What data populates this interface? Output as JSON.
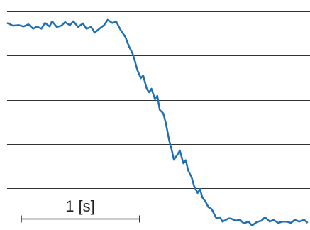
{
  "chart_data": {
    "type": "line",
    "x": [
      0,
      0.05,
      0.1,
      0.14,
      0.18,
      0.22,
      0.25,
      0.29,
      0.32,
      0.36,
      0.38,
      0.42,
      0.46,
      0.49,
      0.53,
      0.56,
      0.6,
      0.64,
      0.67,
      0.71,
      0.74,
      0.78,
      0.82,
      0.85,
      0.89,
      0.92,
      0.96,
      1.0,
      1.03,
      1.06,
      1.08,
      1.1,
      1.13,
      1.15,
      1.18,
      1.2,
      1.22,
      1.25,
      1.27,
      1.29,
      1.32,
      1.34,
      1.37,
      1.39,
      1.41,
      1.44,
      1.46,
      1.49,
      1.51,
      1.53,
      1.56,
      1.58,
      1.61,
      1.63,
      1.65,
      1.68,
      1.7,
      1.73,
      1.75,
      1.77,
      1.8,
      1.82,
      1.85,
      1.87,
      1.89,
      1.93,
      1.97,
      2.0,
      2.04,
      2.07,
      2.11,
      2.15,
      2.18,
      2.22,
      2.25,
      2.29,
      2.33,
      2.36,
      2.4,
      2.43,
      2.47,
      2.51,
      2.54
    ],
    "series": [
      {
        "color": "#1f6fb4",
        "values": [
          3.74,
          3.68,
          3.69,
          3.66,
          3.71,
          3.61,
          3.66,
          3.61,
          3.74,
          3.66,
          3.78,
          3.65,
          3.68,
          3.76,
          3.69,
          3.78,
          3.65,
          3.73,
          3.61,
          3.65,
          3.52,
          3.61,
          3.69,
          3.81,
          3.74,
          3.78,
          3.58,
          3.42,
          3.21,
          3.05,
          2.88,
          2.68,
          2.49,
          2.55,
          2.25,
          2.17,
          2.25,
          2.01,
          2.09,
          1.77,
          1.69,
          1.49,
          1.08,
          0.88,
          0.64,
          0.76,
          0.85,
          0.56,
          0.63,
          0.4,
          0.24,
          0.05,
          -0.11,
          -0.02,
          -0.21,
          -0.32,
          -0.43,
          -0.48,
          -0.59,
          -0.69,
          -0.66,
          -0.76,
          -0.72,
          -0.69,
          -0.69,
          -0.74,
          -0.72,
          -0.8,
          -0.76,
          -0.85,
          -0.77,
          -0.74,
          -0.66,
          -0.76,
          -0.72,
          -0.79,
          -0.76,
          -0.76,
          -0.79,
          -0.72,
          -0.76,
          -0.72,
          -0.79
        ]
      }
    ],
    "xlim": [
      0,
      2.56
    ],
    "ylim": [
      -0.95,
      4.26
    ],
    "gridlines": [
      0,
      1,
      2,
      3,
      4
    ],
    "scale_bar": {
      "label": "1 [s]",
      "length": 1
    }
  }
}
